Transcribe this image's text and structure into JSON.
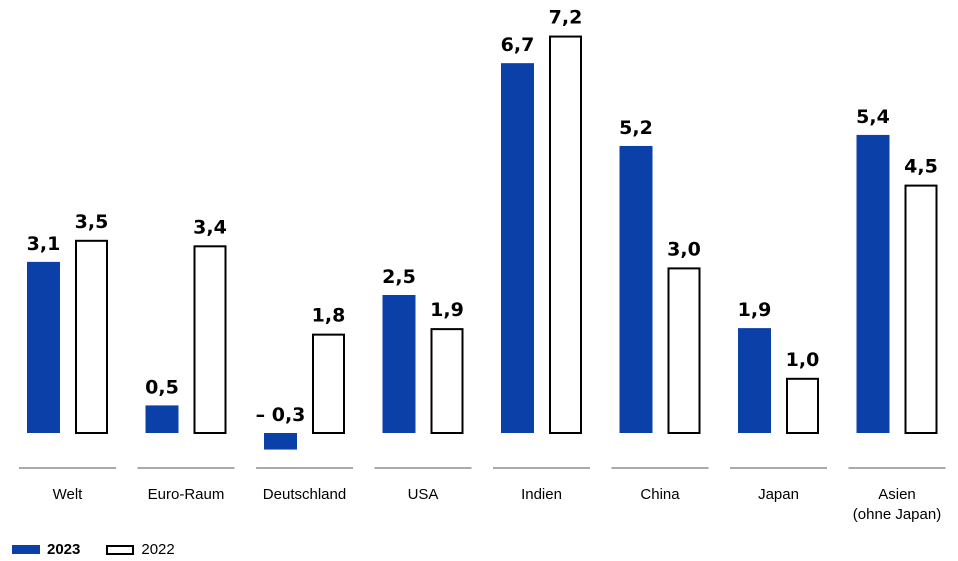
{
  "chart_data": {
    "type": "bar",
    "categories": [
      [
        "Welt"
      ],
      [
        "Euro-Raum"
      ],
      [
        "Deutschland"
      ],
      [
        "USA"
      ],
      [
        "Indien"
      ],
      [
        "China"
      ],
      [
        "Japan"
      ],
      [
        "Asien",
        "(ohne Japan)"
      ]
    ],
    "series": [
      {
        "name": "2023",
        "values": [
          3.1,
          0.5,
          -0.3,
          2.5,
          6.7,
          5.2,
          1.9,
          5.4
        ],
        "labels": [
          "3,1",
          "0,5",
          "– 0,3",
          "2,5",
          "6,7",
          "5,2",
          "1,9",
          "5,4"
        ],
        "style": "filled",
        "color": "#0a40a8"
      },
      {
        "name": "2022",
        "values": [
          3.5,
          3.4,
          1.8,
          1.9,
          7.2,
          3.0,
          1.0,
          4.5
        ],
        "labels": [
          "3,5",
          "3,4",
          "1,8",
          "1,9",
          "7,2",
          "3,0",
          "1,0",
          "4,5"
        ],
        "style": "outline",
        "color": "#000000"
      }
    ],
    "ylim": [
      -0.3,
      7.2
    ],
    "grid": false,
    "legend_position": "bottom-left"
  },
  "legend": {
    "items": [
      {
        "label": "2023",
        "style": "filled",
        "color": "#0a40a8"
      },
      {
        "label": "2022",
        "style": "outline",
        "color": "#000000"
      }
    ]
  }
}
